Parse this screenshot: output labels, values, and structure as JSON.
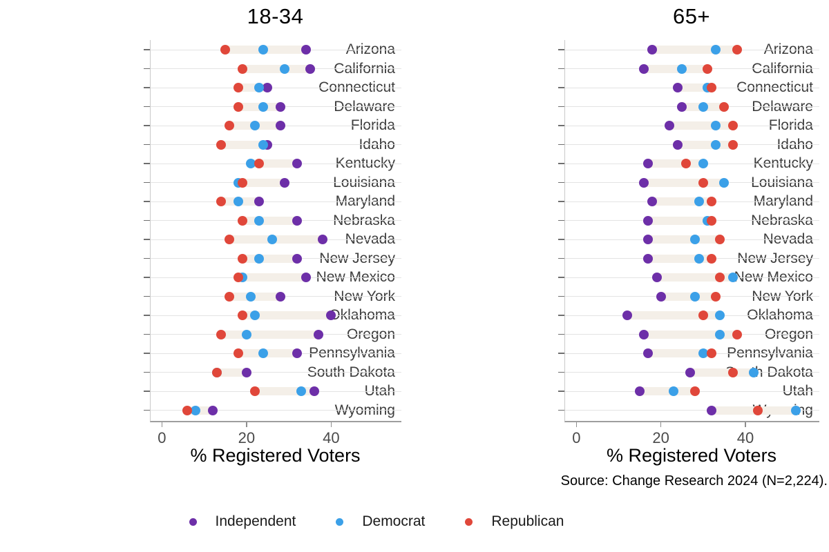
{
  "figure": {
    "source_note": "Source: Change Research 2024 (N=2,224).",
    "legend": [
      {
        "label": "Independent",
        "color": "#6d2fa8"
      },
      {
        "label": "Democrat",
        "color": "#3ba0e8"
      },
      {
        "label": "Republican",
        "color": "#e0473a"
      }
    ],
    "colors": {
      "independent": "#6d2fa8",
      "democrat": "#3ba0e8",
      "republican": "#e0473a",
      "connector": "#f4efe8",
      "gridline": "#e3e3e3"
    }
  },
  "chart_data": [
    {
      "type": "dot",
      "title": "18-34",
      "xlabel": "% Registered Voters",
      "xticks": [
        0,
        20,
        40
      ],
      "xlim": [
        -2.67,
        56.6
      ],
      "grid": true,
      "categories": [
        "Arizona",
        "California",
        "Connecticut",
        "Delaware",
        "Florida",
        "Idaho",
        "Kentucky",
        "Louisiana",
        "Maryland",
        "Nebraska",
        "Nevada",
        "New Jersey",
        "New Mexico",
        "New York",
        "Oklahoma",
        "Oregon",
        "Pennsylvania",
        "South Dakota",
        "Utah",
        "Wyoming"
      ],
      "series": [
        {
          "name": "Independent",
          "color": "#6d2fa8",
          "values": [
            34,
            35,
            25,
            28,
            28,
            25,
            32,
            29,
            23,
            32,
            38,
            32,
            34,
            28,
            40,
            37,
            32,
            20,
            36,
            12
          ]
        },
        {
          "name": "Democrat",
          "color": "#3ba0e8",
          "values": [
            24,
            29,
            23,
            24,
            22,
            24,
            21,
            18,
            18,
            23,
            26,
            23,
            19,
            21,
            22,
            20,
            24,
            13,
            33,
            8
          ]
        },
        {
          "name": "Republican",
          "color": "#e0473a",
          "values": [
            15,
            19,
            18,
            18,
            16,
            14,
            23,
            19,
            14,
            19,
            16,
            19,
            18,
            16,
            19,
            14,
            18,
            13,
            22,
            6
          ]
        }
      ]
    },
    {
      "type": "dot",
      "title": "65+",
      "xlabel": "% Registered Voters",
      "xticks": [
        0,
        20,
        40
      ],
      "xlim": [
        -2.67,
        57.5
      ],
      "grid": true,
      "categories": [
        "Arizona",
        "California",
        "Connecticut",
        "Delaware",
        "Florida",
        "Idaho",
        "Kentucky",
        "Louisiana",
        "Maryland",
        "Nebraska",
        "Nevada",
        "New Jersey",
        "New Mexico",
        "New York",
        "Oklahoma",
        "Oregon",
        "Pennsylvania",
        "South Dakota",
        "Utah",
        "Wyoming"
      ],
      "series": [
        {
          "name": "Independent",
          "color": "#6d2fa8",
          "values": [
            18,
            16,
            24,
            25,
            22,
            24,
            17,
            16,
            18,
            17,
            17,
            17,
            19,
            20,
            12,
            16,
            17,
            27,
            15,
            32
          ]
        },
        {
          "name": "Democrat",
          "color": "#3ba0e8",
          "values": [
            33,
            25,
            31,
            30,
            33,
            33,
            30,
            35,
            29,
            31,
            28,
            29,
            37,
            28,
            34,
            34,
            30,
            42,
            23,
            52
          ]
        },
        {
          "name": "Republican",
          "color": "#e0473a",
          "values": [
            38,
            31,
            32,
            35,
            37,
            37,
            26,
            30,
            32,
            32,
            34,
            32,
            34,
            33,
            30,
            38,
            32,
            37,
            28,
            43
          ]
        }
      ]
    }
  ]
}
